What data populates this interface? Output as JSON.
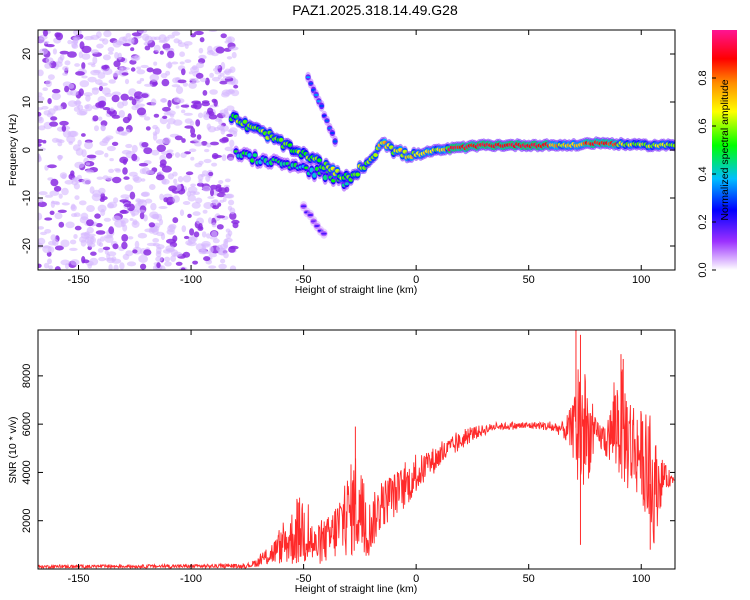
{
  "title": "PAZ1.2025.318.14.49.G28",
  "chart_data": [
    {
      "type": "heatmap",
      "xlabel": "Height of straight line (km)",
      "ylabel": "Frequency (Hz)",
      "xlim": [
        -168,
        115
      ],
      "ylim": [
        -25,
        25
      ],
      "xticks": [
        -150,
        -100,
        -50,
        0,
        50,
        100
      ],
      "yticks": [
        -20,
        -10,
        0,
        10,
        20
      ],
      "colorbar": {
        "label": "Normalized spectral amplitude",
        "range": [
          0.0,
          1.0
        ],
        "ticks": [
          0.0,
          0.2,
          0.4,
          0.6,
          0.8
        ],
        "tick_labels": [
          "0.0",
          "0.2",
          "0.4",
          "0.6",
          "0.8"
        ],
        "colormap": [
          "#ffffff",
          "#9b30ff",
          "#0000ff",
          "#00bfff",
          "#00ff00",
          "#ffff00",
          "#ff8c00",
          "#ff0000",
          "#ff1493"
        ]
      },
      "features": [
        {
          "name": "noise-region",
          "x_range": [
            -168,
            -80
          ],
          "f_range": [
            -25,
            25
          ],
          "amplitude": 0.1
        },
        {
          "name": "main-signal",
          "points": [
            [
              -82,
              7
            ],
            [
              -75,
              5
            ],
            [
              -65,
              3
            ],
            [
              -55,
              0
            ],
            [
              -45,
              -2
            ],
            [
              -35,
              -5
            ],
            [
              -30,
              -6
            ],
            [
              -25,
              -4
            ],
            [
              -20,
              -2
            ],
            [
              -15,
              2
            ],
            [
              -10,
              0
            ],
            [
              -5,
              -1
            ],
            [
              0,
              -1
            ],
            [
              10,
              0
            ],
            [
              20,
              0.5
            ],
            [
              30,
              1
            ],
            [
              50,
              1
            ],
            [
              60,
              1
            ],
            [
              70,
              1
            ],
            [
              80,
              1.5
            ],
            [
              100,
              1
            ],
            [
              115,
              1
            ]
          ],
          "amplitude": 0.8
        },
        {
          "name": "lower-branch",
          "points": [
            [
              -80,
              -1
            ],
            [
              -70,
              -2
            ],
            [
              -60,
              -3
            ],
            [
              -50,
              -4
            ],
            [
              -40,
              -5
            ],
            [
              -30,
              -7
            ]
          ],
          "amplitude": 0.5
        },
        {
          "name": "upward-streak",
          "points": [
            [
              -48,
              15
            ],
            [
              -42,
              9
            ],
            [
              -38,
              4
            ],
            [
              -35,
              1
            ]
          ],
          "amplitude": 0.3
        },
        {
          "name": "downward-streak",
          "points": [
            [
              -50,
              -12
            ],
            [
              -45,
              -15
            ],
            [
              -40,
              -18
            ]
          ],
          "amplitude": 0.2
        }
      ]
    },
    {
      "type": "line",
      "xlabel": "Height of straight line (km)",
      "ylabel": "SNR (10 * v/v)",
      "xlim": [
        -168,
        115
      ],
      "ylim": [
        0,
        9900
      ],
      "xticks": [
        -150,
        -100,
        -50,
        0,
        50,
        100
      ],
      "yticks": [
        2000,
        4000,
        6000,
        8000
      ],
      "series": [
        {
          "name": "SNR",
          "color": "#ff2a2a",
          "envelope": [
            {
              "x": -168,
              "mean": 100,
              "amp": 60
            },
            {
              "x": -75,
              "mean": 120,
              "amp": 80
            },
            {
              "x": -70,
              "mean": 300,
              "amp": 200
            },
            {
              "x": -60,
              "mean": 900,
              "amp": 700
            },
            {
              "x": -55,
              "mean": 1300,
              "amp": 1200
            },
            {
              "x": -50,
              "mean": 1700,
              "amp": 1600
            },
            {
              "x": -45,
              "mean": 900,
              "amp": 800
            },
            {
              "x": -38,
              "mean": 1300,
              "amp": 1000
            },
            {
              "x": -30,
              "mean": 2300,
              "amp": 1800
            },
            {
              "x": -26,
              "mean": 2800,
              "amp": 2400
            },
            {
              "x": -22,
              "mean": 1500,
              "amp": 1200
            },
            {
              "x": -15,
              "mean": 2700,
              "amp": 1000
            },
            {
              "x": -5,
              "mean": 3400,
              "amp": 900
            },
            {
              "x": 5,
              "mean": 4300,
              "amp": 600
            },
            {
              "x": 15,
              "mean": 5000,
              "amp": 450
            },
            {
              "x": 25,
              "mean": 5600,
              "amp": 300
            },
            {
              "x": 35,
              "mean": 5900,
              "amp": 150
            },
            {
              "x": 55,
              "mean": 5950,
              "amp": 150
            },
            {
              "x": 65,
              "mean": 5800,
              "amp": 300
            },
            {
              "x": 70,
              "mean": 5700,
              "amp": 1200
            },
            {
              "x": 72,
              "mean": 6000,
              "amp": 3500
            },
            {
              "x": 75,
              "mean": 5600,
              "amp": 2500
            },
            {
              "x": 80,
              "mean": 5600,
              "amp": 500
            },
            {
              "x": 85,
              "mean": 5300,
              "amp": 800
            },
            {
              "x": 90,
              "mean": 6200,
              "amp": 2500
            },
            {
              "x": 95,
              "mean": 5200,
              "amp": 2200
            },
            {
              "x": 100,
              "mean": 4800,
              "amp": 1800
            },
            {
              "x": 105,
              "mean": 3200,
              "amp": 2500
            },
            {
              "x": 110,
              "mean": 3800,
              "amp": 600
            },
            {
              "x": 115,
              "mean": 3700,
              "amp": 100
            }
          ],
          "peaks": [
            [
              -27,
              5900
            ],
            [
              71,
              9900
            ],
            [
              73,
              9700
            ],
            [
              91,
              8900
            ],
            [
              92,
              8700
            ],
            [
              104,
              800
            ],
            [
              73,
              1000
            ]
          ]
        }
      ]
    }
  ]
}
